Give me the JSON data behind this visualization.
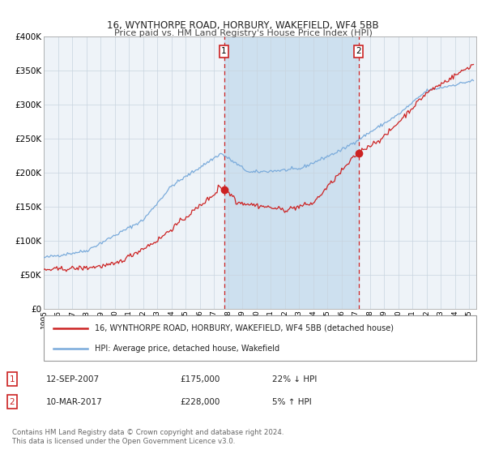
{
  "title1": "16, WYNTHORPE ROAD, HORBURY, WAKEFIELD, WF4 5BB",
  "title2": "Price paid vs. HM Land Registry's House Price Index (HPI)",
  "ylim": [
    0,
    400000
  ],
  "xlim_start": 1995.0,
  "xlim_end": 2025.5,
  "yticks": [
    0,
    50000,
    100000,
    150000,
    200000,
    250000,
    300000,
    350000,
    400000
  ],
  "ytick_labels": [
    "£0",
    "£50K",
    "£100K",
    "£150K",
    "£200K",
    "£250K",
    "£300K",
    "£350K",
    "£400K"
  ],
  "xticks": [
    1995,
    1996,
    1997,
    1998,
    1999,
    2000,
    2001,
    2002,
    2003,
    2004,
    2005,
    2006,
    2007,
    2008,
    2009,
    2010,
    2011,
    2012,
    2013,
    2014,
    2015,
    2016,
    2017,
    2018,
    2019,
    2020,
    2021,
    2022,
    2023,
    2024,
    2025
  ],
  "hpi_color": "#7aabdb",
  "price_color": "#cc2222",
  "bg_color": "#ffffff",
  "plot_bg_color": "#eef3f8",
  "shade_color": "#cde0ef",
  "grid_color": "#c8d4df",
  "sale1_x": 2007.71,
  "sale1_y": 175000,
  "sale1_label": "1",
  "sale2_x": 2017.19,
  "sale2_y": 228000,
  "sale2_label": "2",
  "legend_line1": "16, WYNTHORPE ROAD, HORBURY, WAKEFIELD, WF4 5BB (detached house)",
  "legend_line2": "HPI: Average price, detached house, Wakefield",
  "note1_label": "1",
  "note1_date": "12-SEP-2007",
  "note1_price": "£175,000",
  "note1_hpi": "22% ↓ HPI",
  "note2_label": "2",
  "note2_date": "10-MAR-2017",
  "note2_price": "£228,000",
  "note2_hpi": "5% ↑ HPI",
  "footer": "Contains HM Land Registry data © Crown copyright and database right 2024.\nThis data is licensed under the Open Government Licence v3.0."
}
